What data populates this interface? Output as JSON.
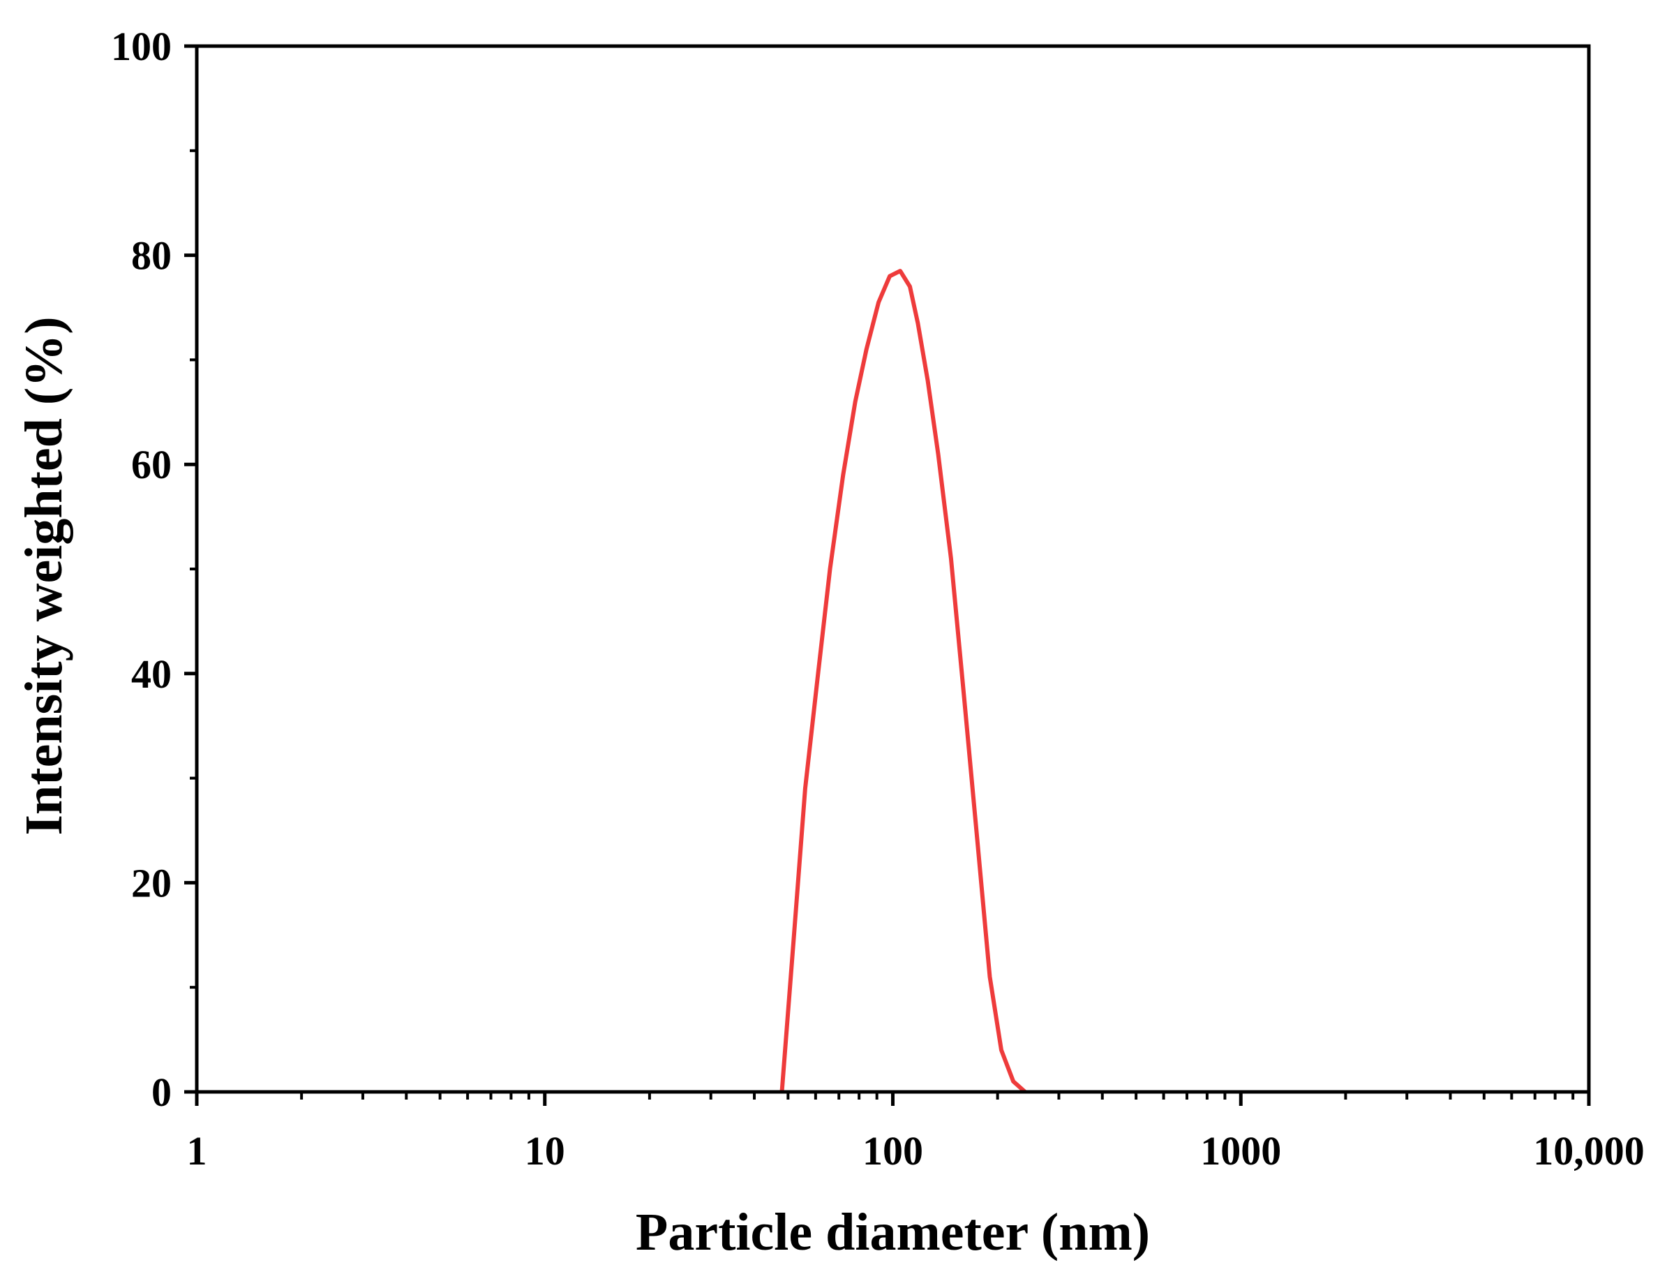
{
  "chart_data": {
    "type": "line",
    "title": "",
    "xlabel": "Particle diameter (nm)",
    "ylabel": "Intensity weighted (%)",
    "x_scale": "log",
    "xlim": [
      1,
      10000
    ],
    "ylim": [
      0,
      100
    ],
    "x_ticks": [
      1,
      10,
      100,
      1000,
      10000
    ],
    "x_tick_labels": [
      "1",
      "10",
      "100",
      "1000",
      "10,000"
    ],
    "y_ticks": [
      0,
      20,
      40,
      60,
      80,
      100
    ],
    "y_tick_labels": [
      "0",
      "20",
      "40",
      "60",
      "80",
      "100"
    ],
    "grid": false,
    "legend": "none",
    "series": [
      {
        "color": "#ee3b3b",
        "x": [
          48,
          52,
          56,
          61,
          66,
          72,
          78,
          84,
          91,
          98,
          105,
          112,
          118,
          126,
          135,
          147,
          160,
          175,
          190,
          205,
          222,
          240
        ],
        "y": [
          0,
          15,
          29,
          40,
          50,
          59,
          66,
          71,
          75.5,
          78,
          78.5,
          77,
          73.5,
          68,
          61,
          51,
          38,
          24,
          11,
          4,
          1,
          0
        ]
      }
    ]
  }
}
